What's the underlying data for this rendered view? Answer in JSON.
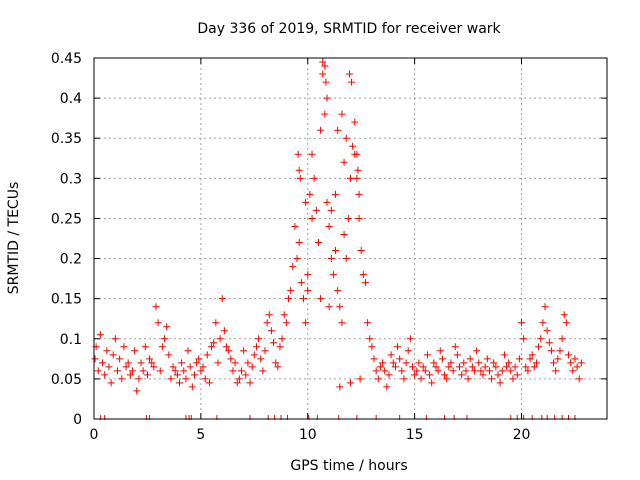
{
  "chart_data": {
    "type": "scatter",
    "title": "Day 336 of 2019, SRMTID for receiver wark",
    "xlabel": "GPS time / hours",
    "ylabel": "SRMTID / TECUs",
    "xlim": [
      0,
      24
    ],
    "ylim": [
      0,
      0.45
    ],
    "xticks": [
      0,
      5,
      10,
      15,
      20
    ],
    "xtick_labels": [
      "0",
      "5",
      "10",
      "15",
      "20"
    ],
    "yticks": [
      0,
      0.05,
      0.1,
      0.15,
      0.2,
      0.25,
      0.3,
      0.35,
      0.4,
      0.45
    ],
    "ytick_labels": [
      "0",
      "0.05",
      "0.1",
      "0.15",
      "0.2",
      "0.25",
      "0.3",
      "0.35",
      "0.4",
      "0.45"
    ],
    "grid": true,
    "marker": "plus",
    "color": "#ff0000",
    "series": [
      {
        "name": "SRMTID",
        "x": [
          0.05,
          0.1,
          0.2,
          0.3,
          0.4,
          0.5,
          0.6,
          0.7,
          0.8,
          0.9,
          1.0,
          1.1,
          1.2,
          1.3,
          1.4,
          1.5,
          1.6,
          1.7,
          1.8,
          1.9,
          2.0,
          2.1,
          2.2,
          2.3,
          2.4,
          2.5,
          2.6,
          2.7,
          2.8,
          2.9,
          3.0,
          3.1,
          3.2,
          3.3,
          3.4,
          3.5,
          3.6,
          3.7,
          3.8,
          3.9,
          4.0,
          4.1,
          4.2,
          4.3,
          4.4,
          4.5,
          4.6,
          4.7,
          4.8,
          4.9,
          5.0,
          5.1,
          5.2,
          5.3,
          5.4,
          5.5,
          5.6,
          5.7,
          5.8,
          5.9,
          6.0,
          6.1,
          6.2,
          6.3,
          6.4,
          6.5,
          6.6,
          6.7,
          6.8,
          6.9,
          7.0,
          7.1,
          7.2,
          7.3,
          7.4,
          7.5,
          7.6,
          7.7,
          7.8,
          7.9,
          8.0,
          8.1,
          8.2,
          8.3,
          8.4,
          8.5,
          8.6,
          8.7,
          8.8,
          8.9,
          9.0,
          9.1,
          9.2,
          9.3,
          9.4,
          9.5,
          9.6,
          9.7,
          9.8,
          9.9,
          10.0,
          10.1,
          10.2,
          10.3,
          10.4,
          10.5,
          10.6,
          10.7,
          10.8,
          10.9,
          11.0,
          11.1,
          11.2,
          11.3,
          11.4,
          11.5,
          11.6,
          11.7,
          11.8,
          11.9,
          12.0,
          12.1,
          12.2,
          12.3,
          12.4,
          12.5,
          12.6,
          12.7,
          12.8,
          12.9,
          13.0,
          13.1,
          13.2,
          13.3,
          13.4,
          13.5,
          13.6,
          13.7,
          13.8,
          13.9,
          14.0,
          14.1,
          14.2,
          14.3,
          14.4,
          14.5,
          14.6,
          14.7,
          14.8,
          14.9,
          15.0,
          15.1,
          15.2,
          15.3,
          15.4,
          15.5,
          15.6,
          15.7,
          15.8,
          15.9,
          16.0,
          16.1,
          16.2,
          16.3,
          16.4,
          16.5,
          16.6,
          16.7,
          16.8,
          16.9,
          17.0,
          17.1,
          17.2,
          17.3,
          17.4,
          17.5,
          17.6,
          17.7,
          17.8,
          17.9,
          18.0,
          18.1,
          18.2,
          18.3,
          18.4,
          18.5,
          18.6,
          18.7,
          18.8,
          18.9,
          19.0,
          19.1,
          19.2,
          19.3,
          19.4,
          19.5,
          19.6,
          19.7,
          19.8,
          19.9,
          20.0,
          20.1,
          20.2,
          20.3,
          20.4,
          20.5,
          20.6,
          20.7,
          20.8,
          20.9,
          21.0,
          21.1,
          21.2,
          21.3,
          21.4,
          21.5,
          21.6,
          21.7,
          21.8,
          21.9,
          22.0,
          22.1,
          22.2,
          22.3,
          22.4,
          22.5,
          22.6,
          22.7,
          22.8,
          9.55,
          9.6,
          9.65,
          10.7,
          10.8,
          10.85,
          10.9,
          11.4,
          11.6,
          11.8,
          11.95,
          12.05,
          12.3,
          12.35,
          12.4,
          10.2,
          10.5,
          11.1,
          11.3,
          11.7,
          12.2,
          9.9,
          10.0,
          10.6,
          11.0,
          11.5,
          12.0,
          12.45
        ],
        "y": [
          0.075,
          0.09,
          0.06,
          0.105,
          0.07,
          0.055,
          0.085,
          0.065,
          0.045,
          0.08,
          0.1,
          0.06,
          0.075,
          0.05,
          0.09,
          0.065,
          0.07,
          0.055,
          0.06,
          0.085,
          0.035,
          0.05,
          0.07,
          0.06,
          0.09,
          0.055,
          0.075,
          0.07,
          0.065,
          0.14,
          0.12,
          0.06,
          0.09,
          0.1,
          0.115,
          0.08,
          0.05,
          0.065,
          0.06,
          0.055,
          0.045,
          0.07,
          0.06,
          0.05,
          0.085,
          0.065,
          0.04,
          0.055,
          0.07,
          0.075,
          0.06,
          0.065,
          0.05,
          0.08,
          0.045,
          0.09,
          0.095,
          0.12,
          0.07,
          0.1,
          0.15,
          0.11,
          0.09,
          0.085,
          0.075,
          0.06,
          0.07,
          0.045,
          0.05,
          0.06,
          0.085,
          0.055,
          0.07,
          0.045,
          0.065,
          0.08,
          0.09,
          0.1,
          0.075,
          0.06,
          0.085,
          0.12,
          0.13,
          0.11,
          0.095,
          0.07,
          0.065,
          0.09,
          0.1,
          0.13,
          0.12,
          0.15,
          0.16,
          0.19,
          0.24,
          0.2,
          0.22,
          0.17,
          0.15,
          0.12,
          0.16,
          0.28,
          0.33,
          0.3,
          0.26,
          0.22,
          0.36,
          0.43,
          0.38,
          0.27,
          0.24,
          0.2,
          0.18,
          0.21,
          0.16,
          0.14,
          0.12,
          0.23,
          0.2,
          0.25,
          0.3,
          0.34,
          0.33,
          0.3,
          0.25,
          0.21,
          0.18,
          0.17,
          0.12,
          0.1,
          0.09,
          0.075,
          0.06,
          0.05,
          0.065,
          0.07,
          0.06,
          0.04,
          0.055,
          0.08,
          0.07,
          0.065,
          0.09,
          0.075,
          0.06,
          0.05,
          0.07,
          0.085,
          0.1,
          0.065,
          0.055,
          0.06,
          0.07,
          0.05,
          0.065,
          0.06,
          0.08,
          0.055,
          0.045,
          0.07,
          0.065,
          0.06,
          0.085,
          0.075,
          0.055,
          0.05,
          0.065,
          0.07,
          0.06,
          0.09,
          0.08,
          0.065,
          0.055,
          0.07,
          0.06,
          0.05,
          0.075,
          0.065,
          0.06,
          0.085,
          0.07,
          0.06,
          0.055,
          0.065,
          0.075,
          0.06,
          0.05,
          0.07,
          0.065,
          0.055,
          0.045,
          0.06,
          0.08,
          0.065,
          0.07,
          0.06,
          0.05,
          0.065,
          0.055,
          0.075,
          0.12,
          0.1,
          0.065,
          0.06,
          0.075,
          0.08,
          0.065,
          0.07,
          0.09,
          0.1,
          0.12,
          0.14,
          0.11,
          0.095,
          0.085,
          0.07,
          0.06,
          0.075,
          0.085,
          0.1,
          0.13,
          0.12,
          0.08,
          0.07,
          0.06,
          0.075,
          0.065,
          0.05,
          0.07,
          0.33,
          0.31,
          0.3,
          0.445,
          0.44,
          0.42,
          0.4,
          0.36,
          0.38,
          0.35,
          0.43,
          0.42,
          0.33,
          0.31,
          0.28,
          0.25,
          0.22,
          0.26,
          0.28,
          0.32,
          0.37,
          0.27,
          0.18,
          0.15,
          0.14,
          0.04,
          0.045,
          0.05
        ]
      }
    ],
    "ticks_at_zero_x": [
      0.3,
      0.5,
      2.45,
      2.6,
      4.3,
      4.45,
      4.55,
      5.75,
      7.3,
      8.15,
      8.45,
      8.75,
      9.05,
      10.05,
      10.45,
      11.45,
      12.3,
      13.2,
      14.3,
      15.55,
      16.4,
      16.85,
      17.45,
      19.5,
      19.8,
      20.1,
      20.5,
      20.95,
      21.2,
      21.55,
      21.9,
      22.2,
      22.5
    ]
  }
}
